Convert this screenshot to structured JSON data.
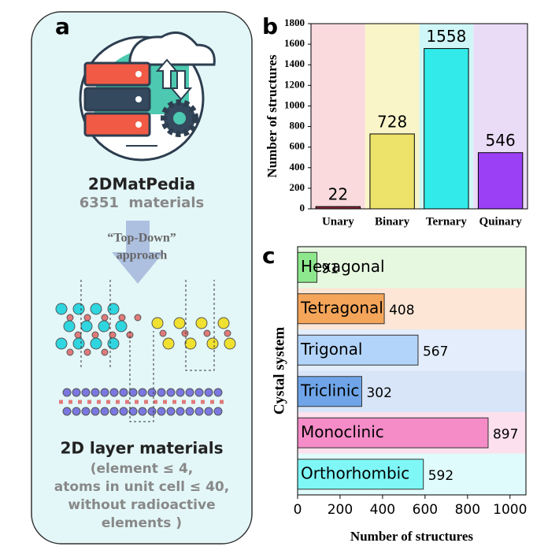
{
  "panel_a": {
    "label": "a",
    "db_name": "2DMatPedia",
    "db_count": "6351  materials",
    "approach_1": "“Top-Down”",
    "approach_2": "approach",
    "result_title": "2D layer materials",
    "criteria": [
      "(element ≤ 4,",
      "atoms in unit cell ≤ 40,",
      "without radioactive",
      "elements )"
    ]
  },
  "chart_data": [
    {
      "type": "bar",
      "panel": "b",
      "ylabel": "Number of structures",
      "categories": [
        "Unary",
        "Binary",
        "Ternary",
        "Quinary"
      ],
      "values": [
        22,
        728,
        1558,
        546
      ],
      "colors": [
        "#8b2a3a",
        "#ede26a",
        "#33eaea",
        "#9b40f5"
      ],
      "band_colors": [
        "#fadadd",
        "#faf5c8",
        "#d0f7f7",
        "#eadcf7"
      ],
      "ylim": [
        0,
        1800
      ],
      "yticks": [
        0,
        200,
        400,
        600,
        800,
        1000,
        1200,
        1400,
        1600,
        1800
      ]
    },
    {
      "type": "barh",
      "panel": "c",
      "xlabel": "Number of structures",
      "ylabel": "Cystal system",
      "categories": [
        "Hexagonal",
        "Tetragonal",
        "Trigonal",
        "Triclinic",
        "Monoclinic",
        "Orthorhombic"
      ],
      "values": [
        91,
        408,
        567,
        302,
        897,
        592
      ],
      "colors": [
        "#8de88d",
        "#f5a55a",
        "#b3d4fa",
        "#6fa5e8",
        "#f58cc8",
        "#7ff7f7"
      ],
      "band_colors": [
        "#e6f8e0",
        "#fde6d6",
        "#e3edfb",
        "#d8e5f8",
        "#fde0ee",
        "#e0fbfb"
      ],
      "xlim": [
        0,
        1075
      ],
      "xticks": [
        0,
        200,
        400,
        600,
        800,
        1000
      ]
    }
  ]
}
